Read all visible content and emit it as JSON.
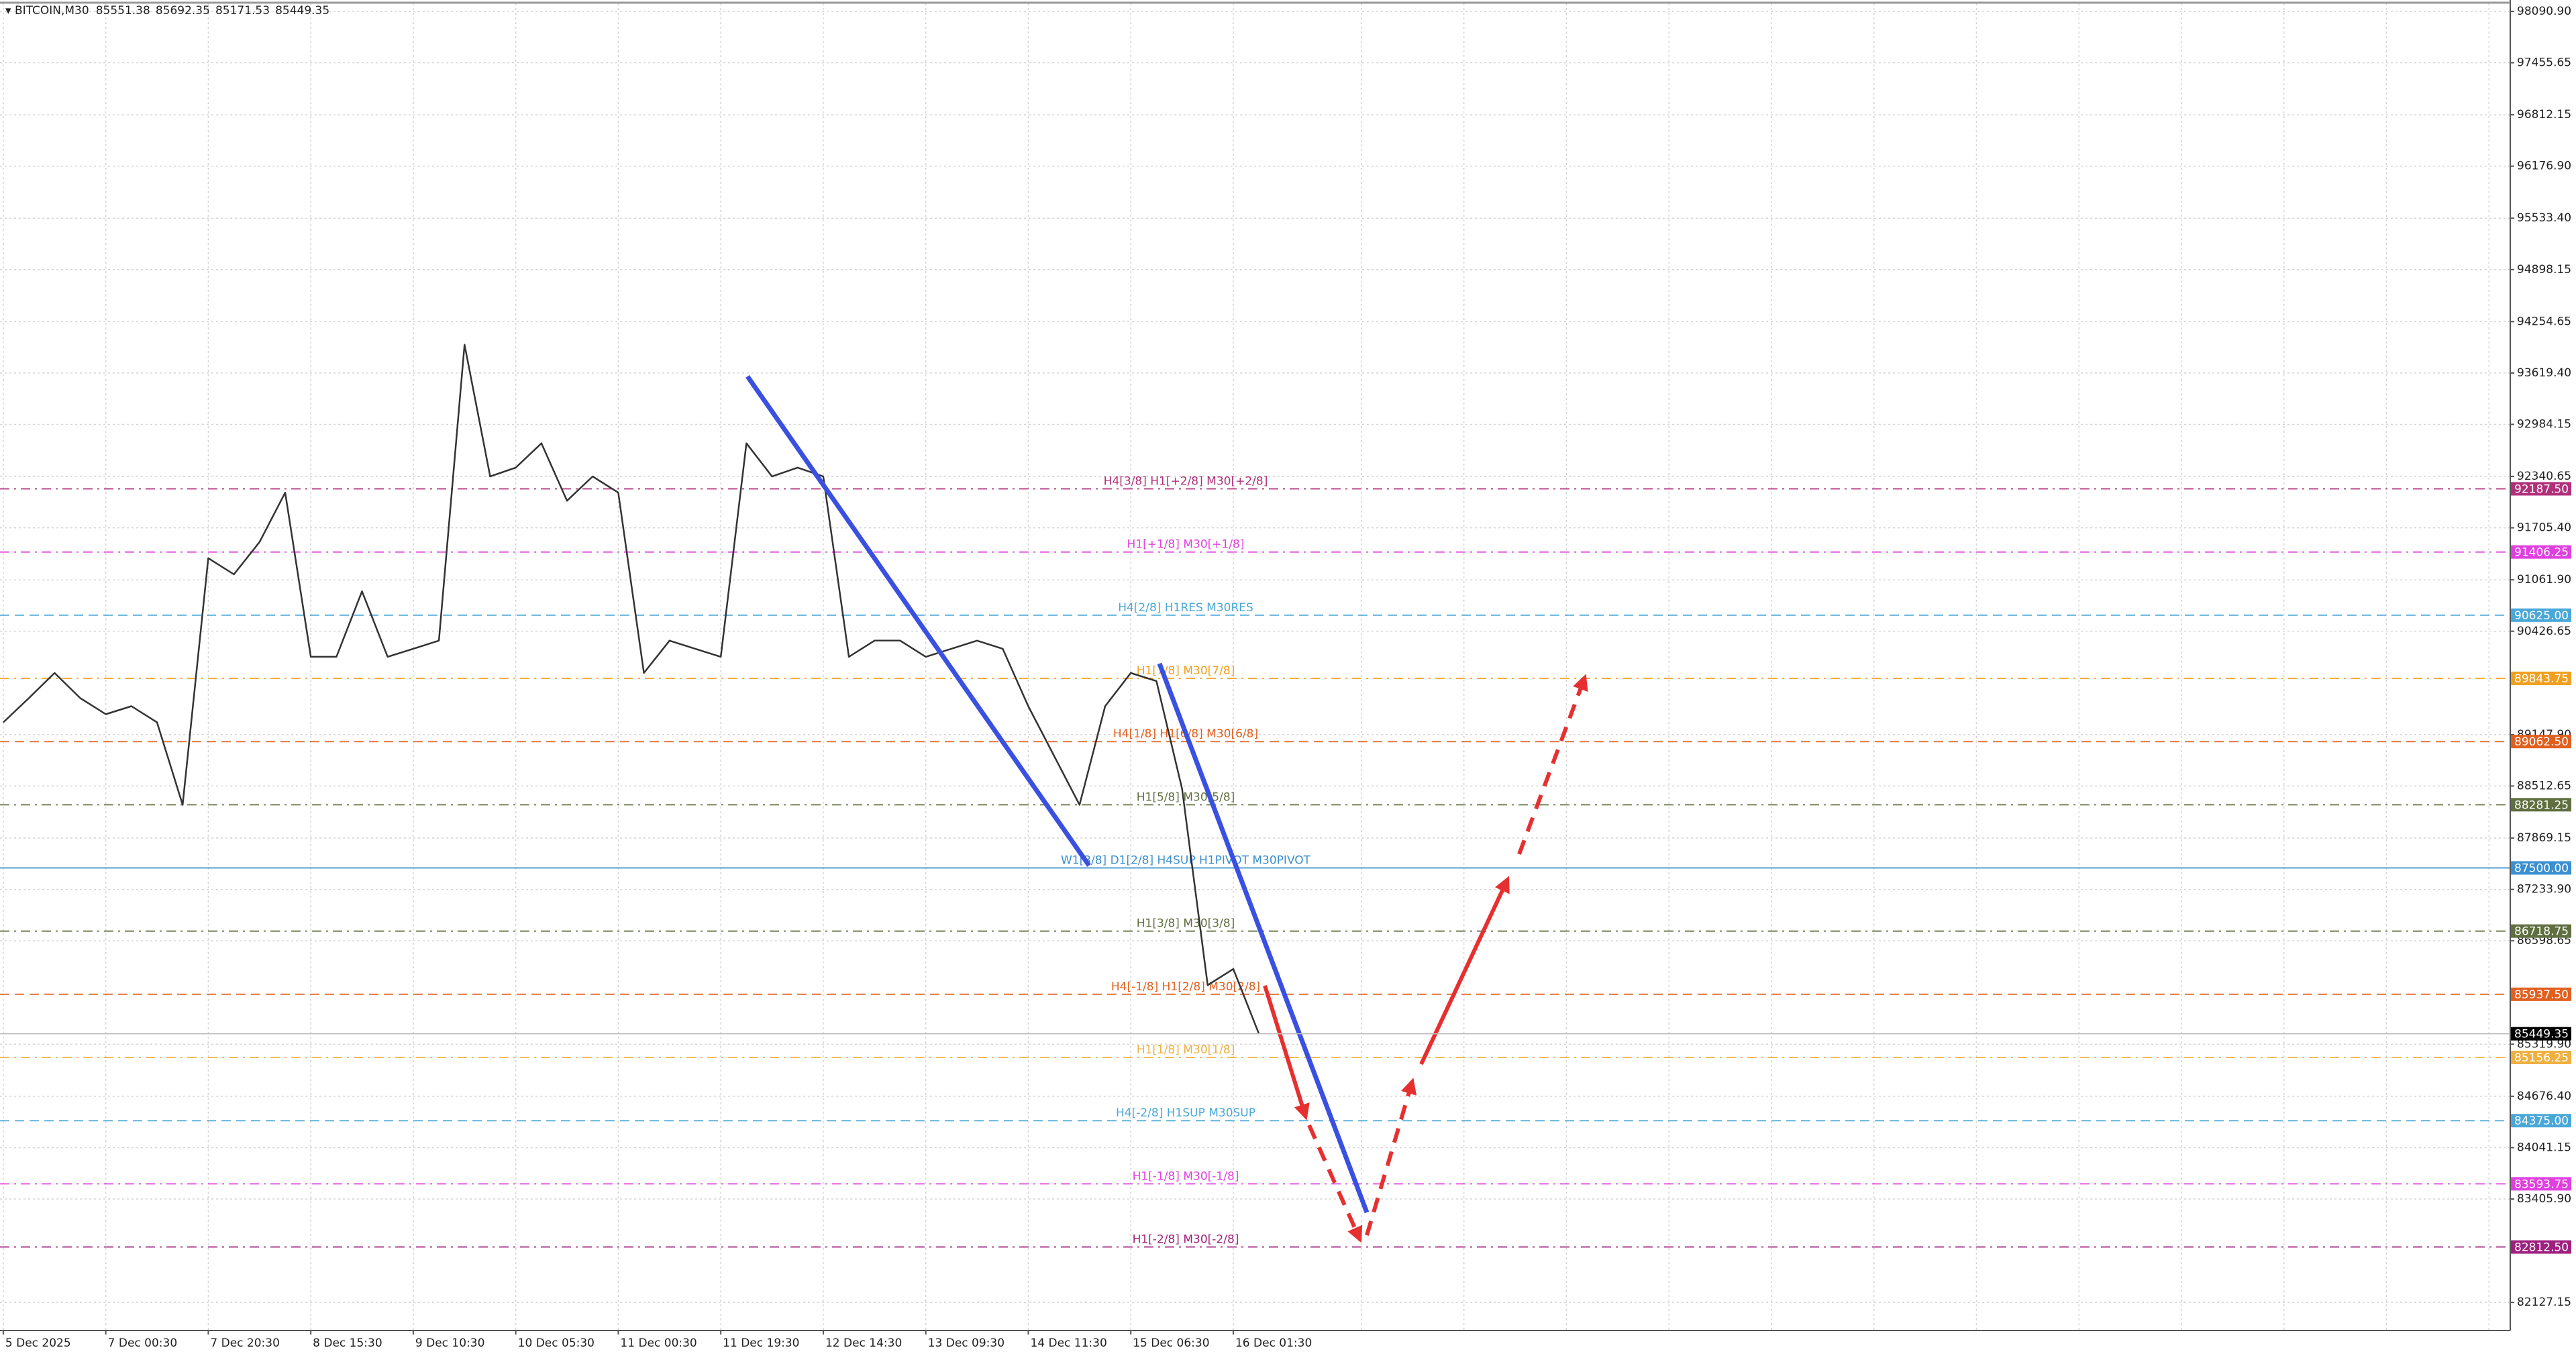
{
  "chart_data": {
    "type": "line",
    "symbol": "BITCOIN,M30",
    "ohlc": [
      85551.38,
      85692.35,
      85171.53,
      85449.35
    ],
    "last": 85449.35,
    "categories": [
      "5 Dec 2025",
      null,
      null,
      null,
      "7 Dec 00:30",
      null,
      null,
      null,
      "7 Dec 20:30",
      null,
      null,
      null,
      "8 Dec 15:30",
      null,
      null,
      null,
      "9 Dec 10:30",
      null,
      null,
      null,
      "10 Dec 05:30",
      null,
      null,
      null,
      "11 Dec 00:30",
      null,
      null,
      null,
      "11 Dec 19:30",
      null,
      null,
      null,
      "12 Dec 14:30",
      null,
      null,
      null,
      "13 Dec 09:30",
      null,
      null,
      null,
      "14 Dec 11:30",
      null,
      null,
      null,
      "15 Dec 06:30",
      null,
      null,
      null,
      "16 Dec 01:30",
      null
    ],
    "series": [
      {
        "color": "#333333",
        "values": [
          89300,
          89600,
          89910,
          89600,
          89400,
          89500,
          89300,
          88280,
          91330,
          91130,
          91530,
          92140,
          90110,
          90110,
          90920,
          90110,
          90210,
          90310,
          93970,
          92340,
          92450,
          92750,
          92040,
          92340,
          92140,
          89910,
          90310,
          90210,
          90110,
          92750,
          92340,
          92450,
          92340,
          90110,
          90310,
          90310,
          90110,
          90210,
          90310,
          90210,
          89500,
          88890,
          88280,
          89500,
          89910,
          89810,
          88480,
          86050,
          86250,
          85449.35
        ]
      }
    ],
    "ylim": [
      81780,
      98190
    ],
    "yticks": [
      {
        "value": 98090.9,
        "label": "98090.90"
      },
      97455.65,
      96812.15,
      {
        "value": 96176.9,
        "label": "96176.90"
      },
      {
        "value": 95533.4,
        "label": "95533.40"
      },
      94898.15,
      94254.65,
      {
        "value": 93619.4,
        "label": "93619.40"
      },
      92984.15,
      92340.65,
      {
        "value": 91705.4,
        "label": "91705.40"
      },
      {
        "value": 91061.9,
        "label": "91061.90"
      },
      90426.65,
      {
        "value": 89147.9,
        "label": "89147.90"
      },
      88512.65,
      87869.15,
      {
        "value": 87233.9,
        "label": "87233.90"
      },
      86598.65,
      {
        "value": 85319.9,
        "label": "85319.90"
      },
      {
        "value": 84676.4,
        "label": "84676.40"
      },
      84041.15,
      {
        "value": 83405.9,
        "label": "83405.90"
      },
      82127.15
    ],
    "grid": true,
    "levels": [
      {
        "label": "H4[3/8] H1[+2/8] M30[+2/8]",
        "value": 92187.5,
        "value_label": "92187.50",
        "color": "#b0307a",
        "style": "dashdot"
      },
      {
        "label": "H1[+1/8] M30[+1/8]",
        "value": 91406.25,
        "value_label": "91406.25",
        "color": "#e040e0",
        "style": "dashdot"
      },
      {
        "label": "H4[2/8] H1RES M30RES",
        "value": 90625,
        "value_label": "90625.00",
        "color": "#4aa8d8",
        "style": "dash"
      },
      {
        "label": "H1[7/8] M30[7/8]",
        "value": 89843.75,
        "value_label": "89843.75",
        "color": "#f0a020",
        "style": "dashdot"
      },
      {
        "label": "H4[1/8] H1[6/8] M30[6/8]",
        "value": 89062.5,
        "value_label": "89062.50",
        "color": "#e06020",
        "style": "dash"
      },
      {
        "label": "H1[5/8] M30[5/8]",
        "value": 88281.25,
        "value_label": "88281.25",
        "color": "#5f6f3f",
        "style": "dashdot"
      },
      {
        "label": "W1[3/8] D1[2/8] H4SUP H1PIVOT M30PIVOT",
        "value": 87500,
        "value_label": "87500.00",
        "color": "#3a8fd0",
        "style": "solid"
      },
      {
        "label": "H1[3/8] M30[3/8]",
        "value": 86718.75,
        "value_label": "86718.75",
        "color": "#5f6f3f",
        "style": "dashdot"
      },
      {
        "label": "H4[-1/8] H1[2/8] M30[2/8]",
        "value": 85937.5,
        "value_label": "85937.50",
        "color": "#e06020",
        "style": "dash"
      },
      {
        "label": "H1[1/8] M30[1/8]",
        "value": 85156.25,
        "value_label": "85156.25",
        "color": "#f0b040",
        "style": "dashdot"
      },
      {
        "label": "H4[-2/8] H1SUP M30SUP",
        "value": 84375,
        "value_label": "84375.00",
        "color": "#4aa8d8",
        "style": "dash"
      },
      {
        "label": "H1[-1/8] M30[-1/8]",
        "value": 83593.75,
        "value_label": "83593.75",
        "color": "#e040e0",
        "style": "dashdot"
      },
      {
        "label": "H1[-2/8] M30[-2/8]",
        "value": 82812.5,
        "value_label": "82812.50",
        "color": "#a02080",
        "style": "dashdot"
      }
    ]
  }
}
